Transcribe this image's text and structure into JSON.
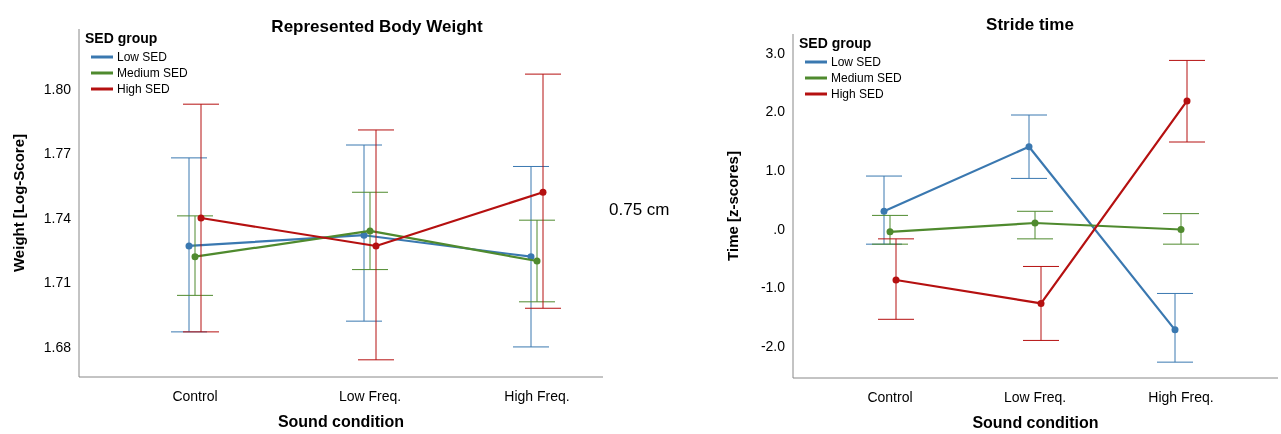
{
  "chart_data": [
    {
      "type": "line",
      "title": "Represented Body Weight",
      "xlabel": "Sound condition",
      "ylabel": "Weight [Log-Score]",
      "legend_title": "SED group",
      "legend": "top left",
      "grid": false,
      "marker": "circle",
      "categories": [
        "Control",
        "Low Freq.",
        "High Freq."
      ],
      "ylim": [
        1.666,
        1.828
      ],
      "yticks": [
        {
          "value": 1.68,
          "label": "1.68"
        },
        {
          "value": 1.71,
          "label": "1.71"
        },
        {
          "value": 1.74,
          "label": "1.74"
        },
        {
          "value": 1.77,
          "label": "1.77"
        },
        {
          "value": 1.8,
          "label": "1.80"
        }
      ],
      "annotations": [
        "0.75 cm"
      ],
      "series": [
        {
          "name": "Low SED",
          "color": "#3a78b0",
          "values": [
            1.727,
            1.732,
            1.722
          ],
          "errors": [
            [
              1.687,
              1.768
            ],
            [
              1.692,
              1.774
            ],
            [
              1.68,
              1.764
            ]
          ]
        },
        {
          "name": "Medium SED",
          "color": "#4f8a2e",
          "values": [
            1.722,
            1.734,
            1.72
          ],
          "errors": [
            [
              1.704,
              1.741
            ],
            [
              1.716,
              1.752
            ],
            [
              1.701,
              1.739
            ]
          ]
        },
        {
          "name": "High SED",
          "color": "#b51010",
          "values": [
            1.74,
            1.727,
            1.752
          ],
          "errors": [
            [
              1.687,
              1.793
            ],
            [
              1.674,
              1.781
            ],
            [
              1.698,
              1.807
            ]
          ]
        }
      ]
    },
    {
      "type": "line",
      "title": "Stride time",
      "xlabel": "Sound condition",
      "ylabel": "Time [z-scores]",
      "legend_title": "SED group",
      "legend": "top left",
      "grid": false,
      "marker": "circle",
      "categories": [
        "Control",
        "Low Freq.",
        "High Freq."
      ],
      "ylim": [
        -2.54,
        3.32
      ],
      "yticks": [
        {
          "value": -2,
          "label": "-2.0"
        },
        {
          "value": -1,
          "label": "-1.0"
        },
        {
          "value": 0,
          "label": ".0"
        },
        {
          "value": 1,
          "label": "1.0"
        },
        {
          "value": 2,
          "label": "2.0"
        },
        {
          "value": 3,
          "label": "3.0"
        }
      ],
      "series": [
        {
          "name": "Low SED",
          "color": "#3a78b0",
          "values": [
            0.3,
            1.4,
            -1.72
          ],
          "errors": [
            [
              -0.26,
              0.9
            ],
            [
              0.86,
              1.94
            ],
            [
              -2.27,
              -1.1
            ]
          ]
        },
        {
          "name": "Medium SED",
          "color": "#4f8a2e",
          "values": [
            -0.05,
            0.1,
            -0.01
          ],
          "errors": [
            [
              -0.26,
              0.23
            ],
            [
              -0.17,
              0.3
            ],
            [
              -0.26,
              0.26
            ]
          ]
        },
        {
          "name": "High SED",
          "color": "#b51010",
          "values": [
            -0.87,
            -1.27,
            2.18
          ],
          "errors": [
            [
              -1.54,
              -0.17
            ],
            [
              -1.9,
              -0.64
            ],
            [
              1.48,
              2.87
            ]
          ]
        }
      ]
    }
  ]
}
